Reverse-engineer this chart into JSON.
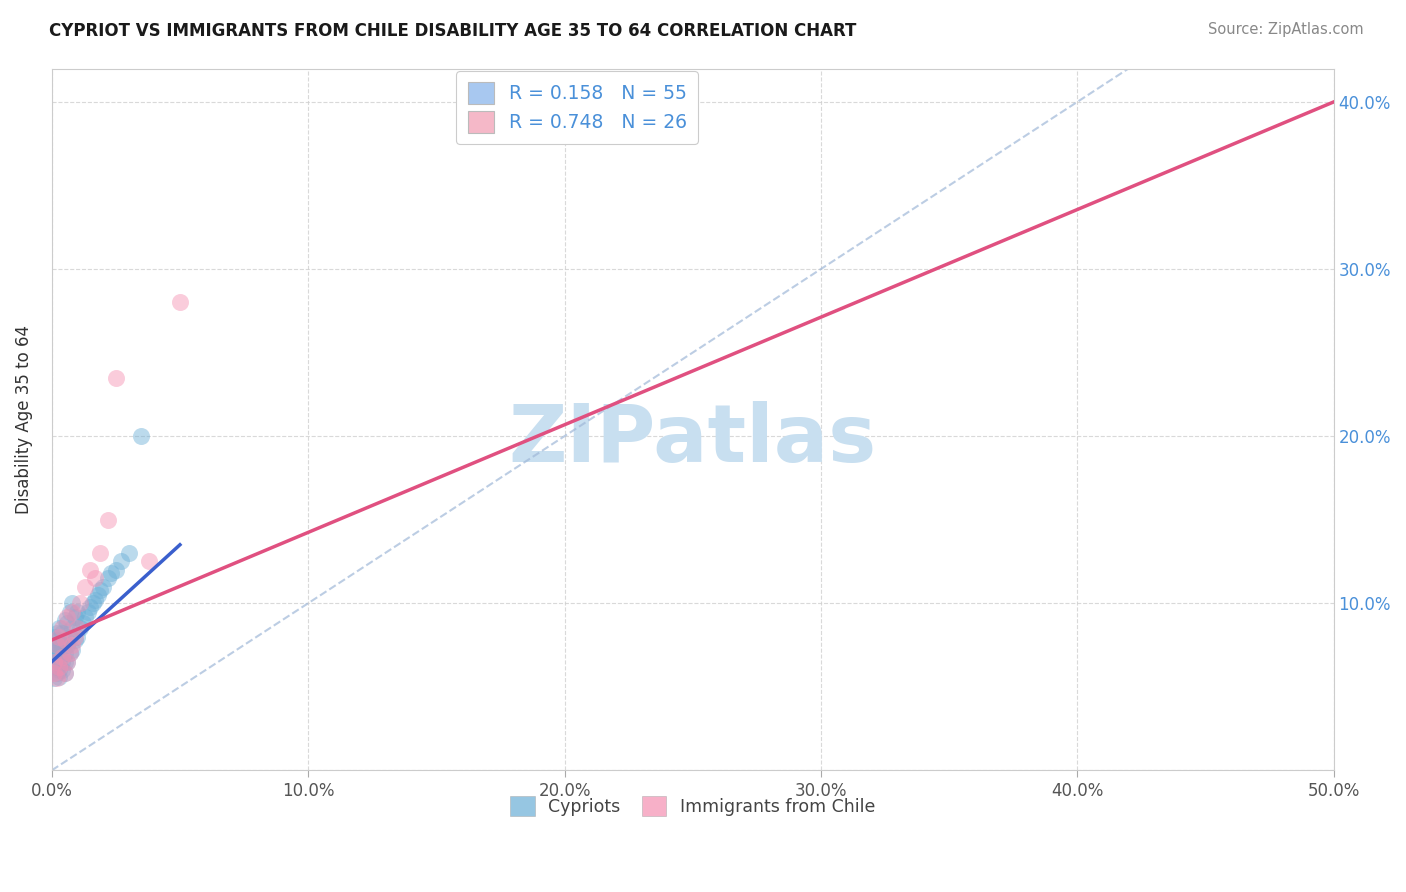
{
  "title": "CYPRIOT VS IMMIGRANTS FROM CHILE DISABILITY AGE 35 TO 64 CORRELATION CHART",
  "source": "Source: ZipAtlas.com",
  "ylabel": "Disability Age 35 to 64",
  "xmin": 0.0,
  "xmax": 0.5,
  "ymin": 0.0,
  "ymax": 0.42,
  "xticks": [
    0.0,
    0.1,
    0.2,
    0.3,
    0.4,
    0.5
  ],
  "xtick_labels": [
    "0.0%",
    "10.0%",
    "20.0%",
    "30.0%",
    "40.0%",
    "50.0%"
  ],
  "yticks": [
    0.0,
    0.1,
    0.2,
    0.3,
    0.4
  ],
  "ytick_labels": [
    "",
    "10.0%",
    "20.0%",
    "30.0%",
    "40.0%"
  ],
  "legend_entries": [
    {
      "label": "R = 0.158   N = 55",
      "color": "#a8c8f0"
    },
    {
      "label": "R = 0.748   N = 26",
      "color": "#f5b8c8"
    }
  ],
  "cypriot_color": "#6aaed6",
  "chile_color": "#f48fb1",
  "cypriot_line_color": "#3a5fcd",
  "chile_line_color": "#e05080",
  "watermark": "ZIPatlas",
  "watermark_color": "#c8dff0",
  "background_color": "#ffffff",
  "grid_color": "#d0d0d0",
  "cypriot_points_x": [
    0.001,
    0.001,
    0.001,
    0.001,
    0.001,
    0.002,
    0.002,
    0.002,
    0.002,
    0.002,
    0.002,
    0.003,
    0.003,
    0.003,
    0.003,
    0.003,
    0.003,
    0.004,
    0.004,
    0.004,
    0.004,
    0.005,
    0.005,
    0.005,
    0.005,
    0.005,
    0.006,
    0.006,
    0.006,
    0.007,
    0.007,
    0.007,
    0.008,
    0.008,
    0.008,
    0.009,
    0.009,
    0.01,
    0.01,
    0.011,
    0.012,
    0.013,
    0.014,
    0.015,
    0.016,
    0.017,
    0.018,
    0.019,
    0.02,
    0.022,
    0.023,
    0.025,
    0.027,
    0.03,
    0.035
  ],
  "cypriot_points_y": [
    0.055,
    0.065,
    0.07,
    0.075,
    0.08,
    0.058,
    0.062,
    0.068,
    0.072,
    0.078,
    0.082,
    0.056,
    0.06,
    0.065,
    0.07,
    0.075,
    0.085,
    0.06,
    0.065,
    0.075,
    0.082,
    0.058,
    0.065,
    0.07,
    0.078,
    0.09,
    0.065,
    0.075,
    0.088,
    0.07,
    0.08,
    0.095,
    0.072,
    0.085,
    0.1,
    0.078,
    0.092,
    0.08,
    0.095,
    0.085,
    0.088,
    0.092,
    0.095,
    0.098,
    0.1,
    0.102,
    0.105,
    0.108,
    0.11,
    0.115,
    0.118,
    0.12,
    0.125,
    0.13,
    0.2
  ],
  "chile_points_x": [
    0.001,
    0.001,
    0.002,
    0.002,
    0.003,
    0.003,
    0.004,
    0.004,
    0.005,
    0.005,
    0.006,
    0.006,
    0.007,
    0.008,
    0.008,
    0.009,
    0.01,
    0.011,
    0.013,
    0.015,
    0.017,
    0.019,
    0.022,
    0.025,
    0.038,
    0.05
  ],
  "chile_points_y": [
    0.058,
    0.065,
    0.055,
    0.075,
    0.062,
    0.08,
    0.068,
    0.085,
    0.058,
    0.078,
    0.065,
    0.092,
    0.07,
    0.075,
    0.095,
    0.08,
    0.085,
    0.1,
    0.11,
    0.12,
    0.115,
    0.13,
    0.15,
    0.235,
    0.125,
    0.28
  ],
  "cypriot_line_x": [
    0.0,
    0.05
  ],
  "cypriot_line_y": [
    0.065,
    0.135
  ],
  "chile_line_x": [
    0.0,
    0.5
  ],
  "chile_line_y": [
    0.078,
    0.4
  ]
}
